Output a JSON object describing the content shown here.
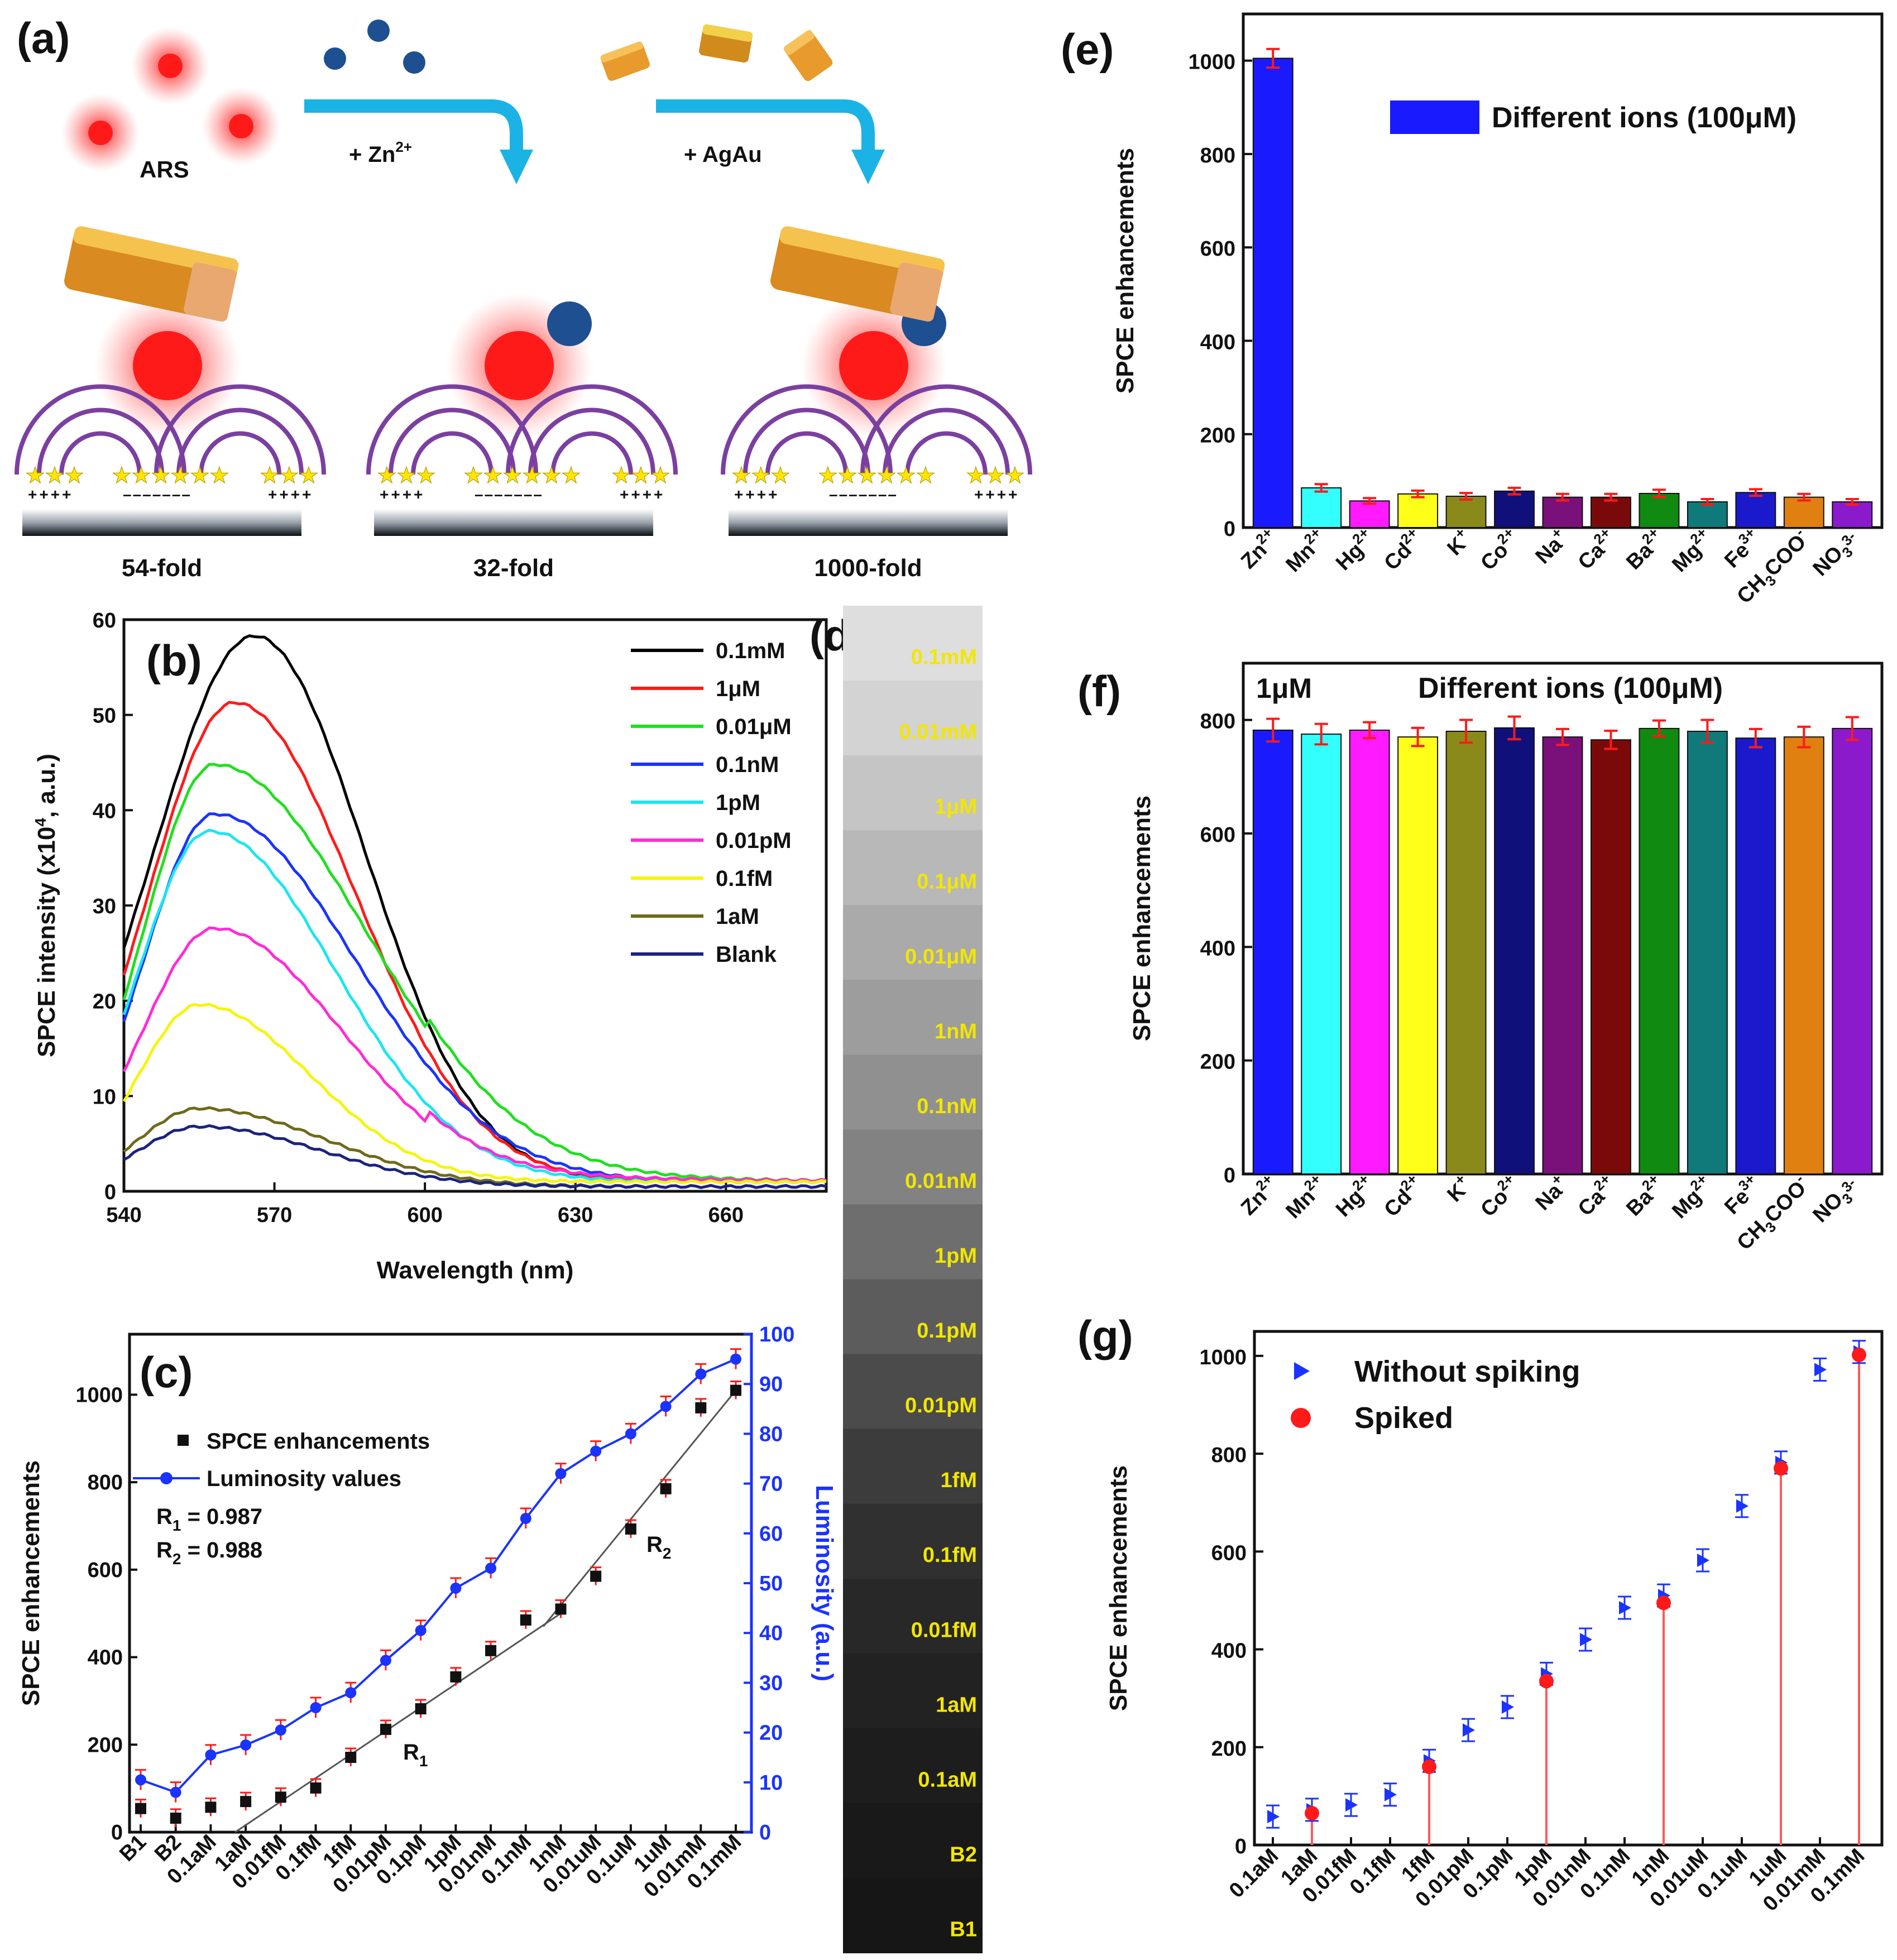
{
  "panels": {
    "a": "(a)",
    "b": "(b)",
    "c": "(c)",
    "d": "(d)",
    "e": "(e)",
    "f": "(f)",
    "g": "(g)"
  },
  "colors": {
    "ars_red": "#ff1a1a",
    "zn_blue": "#1d4f91",
    "arrow": "#1bb3e6",
    "agau": "#e89a2c",
    "arc": "#7b3fa0",
    "star": "#ffe600",
    "err": "#ff1a1a",
    "lum_blue": "#1a33ff"
  },
  "schematic": {
    "ars_label": "ARS",
    "zn_step": "+ Zn",
    "zn_sup": "2+",
    "agau_step": "+ AgAu",
    "stage_labels": [
      "54-fold",
      "32-fold",
      "1000-fold"
    ],
    "plus_signs": "++++",
    "minus_signs": "–––––––"
  },
  "chart_data": [
    {
      "id": "b",
      "type": "line",
      "xlabel": "Wavelength (nm)",
      "ylabel": "SPCE intensity (x10",
      "ylabel_sup": "4",
      "ylabel_end": ", a.u.)",
      "xlim": [
        540,
        680
      ],
      "ylim": [
        0,
        60
      ],
      "xticks": [
        540,
        570,
        600,
        630,
        660
      ],
      "yticks": [
        0,
        10,
        20,
        30,
        40,
        50,
        60
      ],
      "series": [
        {
          "name": "0.1mM",
          "color": "#000000",
          "peak": 58.3,
          "lambda": 566,
          "sl": 20,
          "sr": 22,
          "base": 1,
          "start": 5
        },
        {
          "name": "1μM",
          "color": "#ff1a1a",
          "peak": 51.3,
          "lambda": 562,
          "sl": 17,
          "sr": 24,
          "base": 1,
          "start": 5
        },
        {
          "name": "0.01μM",
          "color": "#1fe01f",
          "peak": 44.8,
          "lambda": 558,
          "sl": 14,
          "sr": 30,
          "base": 1,
          "start": 8
        },
        {
          "name": "0.1nM",
          "color": "#1a33ff",
          "peak": 39.6,
          "lambda": 558,
          "sl": 14,
          "sr": 28,
          "base": 1,
          "start": 8
        },
        {
          "name": "1pM",
          "color": "#1ae6f2",
          "peak": 37.8,
          "lambda": 557,
          "sl": 14,
          "sr": 25,
          "base": 1,
          "start": 9
        },
        {
          "name": "0.01pM",
          "color": "#ff2bd6",
          "peak": 27.6,
          "lambda": 558,
          "sl": 14,
          "sr": 25,
          "base": 1,
          "start": 6
        },
        {
          "name": "0.1fM",
          "color": "#f5f50a",
          "peak": 19.6,
          "lambda": 555,
          "sl": 12,
          "sr": 22,
          "base": 1,
          "start": 6
        },
        {
          "name": "1aM",
          "color": "#6f6a1a",
          "peak": 8.7,
          "lambda": 555,
          "sl": 12,
          "sr": 25,
          "base": 0.5,
          "start": 4
        },
        {
          "name": "Blank",
          "color": "#1a237e",
          "peak": 6.8,
          "lambda": 555,
          "sl": 12,
          "sr": 24,
          "base": 0.5,
          "start": 2
        }
      ]
    },
    {
      "id": "c",
      "type": "scatter+line",
      "ylabel": "SPCE enhancements",
      "ylabel_right": "Luminosity (a.u.)",
      "categories": [
        "B1",
        "B2",
        "0.1aM",
        "1aM",
        "0.01fM",
        "0.1fM",
        "1fM",
        "0.01pM",
        "0.1pM",
        "1pM",
        "0.01nM",
        "0.1nM",
        "1nM",
        "0.01uM",
        "0.1uM",
        "1uM",
        "0.01mM",
        "0.1mM"
      ],
      "ylim": [
        0,
        1100
      ],
      "ylim_right": [
        0,
        100
      ],
      "yticks": [
        0,
        200,
        400,
        600,
        800,
        1000
      ],
      "yticks_right": [
        0,
        10,
        20,
        30,
        40,
        50,
        60,
        70,
        80,
        90,
        100
      ],
      "series": [
        {
          "name": "SPCE enhancements",
          "color": "#111111",
          "values": [
            54,
            32,
            57,
            70,
            80,
            101,
            171,
            235,
            282,
            355,
            415,
            485,
            510,
            585,
            693,
            785,
            970,
            1010
          ]
        },
        {
          "name": "Luminosity values",
          "color": "#1a33ff",
          "values": [
            10.5,
            8,
            15.5,
            17.5,
            20.5,
            25,
            28,
            34.5,
            40.5,
            49,
            53,
            63,
            72,
            76.5,
            80,
            85.5,
            92,
            95
          ]
        }
      ],
      "annotations": [
        "R",
        "1",
        " = 0.987",
        "R",
        "2",
        " = 0.988"
      ],
      "fit_labels": {
        "r1": "R",
        "r1_sub": "1",
        "r2": "R",
        "r2_sub": "2"
      }
    },
    {
      "id": "e",
      "type": "bar",
      "ylabel": "SPCE enhancements",
      "legend": "Different ions (100",
      "legend_mu": "μM)",
      "ylim": [
        0,
        1100
      ],
      "yticks": [
        0,
        200,
        400,
        600,
        800,
        1000
      ],
      "categories": [
        "Zn",
        "Mn",
        "Hg",
        "Cd",
        "K",
        "Co",
        "Na",
        "Ca",
        "Ba",
        "Mg",
        "Fe",
        "CH",
        "NO"
      ],
      "category_sups": [
        "2+",
        "2+",
        "2+",
        "2+",
        "+",
        "2+",
        "+",
        "2+",
        "2+",
        "2+",
        "3+",
        "-",
        "3-"
      ],
      "category_subs": [
        "",
        "",
        "",
        "",
        "",
        "",
        "",
        "",
        "",
        "",
        "",
        "3",
        "3"
      ],
      "category_tail": [
        "",
        "",
        "",
        "",
        "",
        "",
        "",
        "",
        "",
        "",
        "",
        "COO",
        ""
      ],
      "values": [
        1005,
        85,
        57,
        72,
        67,
        78,
        65,
        65,
        73,
        55,
        75,
        65,
        55
      ],
      "errors": [
        20,
        8,
        6,
        7,
        7,
        7,
        7,
        7,
        8,
        6,
        7,
        7,
        6
      ],
      "bar_colors": [
        "#1a1aff",
        "#33ffff",
        "#ff1aff",
        "#ffff1a",
        "#8a8a1a",
        "#10107a",
        "#7a107a",
        "#7a0a0a",
        "#108a10",
        "#107a7a",
        "#1a1acc",
        "#e08010",
        "#8a1acc"
      ]
    },
    {
      "id": "f",
      "type": "bar",
      "ylabel": "SPCE enhancements",
      "corner": "1μM",
      "legend": "Different ions (100",
      "legend_mu": "μM)",
      "ylim": [
        0,
        900
      ],
      "yticks": [
        0,
        200,
        400,
        600,
        800
      ],
      "values": [
        782,
        775,
        782,
        770,
        780,
        786,
        770,
        765,
        785,
        780,
        768,
        770,
        785
      ],
      "errors": [
        20,
        18,
        14,
        16,
        20,
        20,
        14,
        16,
        14,
        20,
        16,
        18,
        20
      ]
    },
    {
      "id": "g",
      "type": "scatter",
      "ylabel": "SPCE enhancements",
      "categories": [
        "0.1aM",
        "1aM",
        "0.01fM",
        "0.1fM",
        "1fM",
        "0.01pM",
        "0.1pM",
        "1pM",
        "0.01nM",
        "0.1nM",
        "1nM",
        "0.01uM",
        "0.1uM",
        "1uM",
        "0.01mM",
        "0.1mM"
      ],
      "ylim": [
        0,
        1050
      ],
      "yticks": [
        0,
        200,
        400,
        600,
        800,
        1000
      ],
      "series": [
        {
          "name": "Without spiking",
          "color": "#1a33ff",
          "values": [
            58,
            72,
            82,
            103,
            172,
            235,
            282,
            350,
            420,
            485,
            510,
            582,
            693,
            782,
            972,
            1008
          ]
        },
        {
          "name": "Spiked",
          "color": "#ff1a1a",
          "values": [
            null,
            65,
            null,
            null,
            160,
            null,
            null,
            335,
            null,
            null,
            495,
            null,
            null,
            770,
            null,
            1002
          ]
        }
      ]
    },
    {
      "id": "d",
      "type": "table",
      "labels": [
        "0.1mM",
        "0.01mM",
        "1μM",
        "0.1μM",
        "0.01μM",
        "1nM",
        "0.1nM",
        "0.01nM",
        "1pM",
        "0.1pM",
        "0.01pM",
        "1fM",
        "0.1fM",
        "0.01fM",
        "1aM",
        "0.1aM",
        "B2",
        "B1"
      ],
      "gray_levels": [
        222,
        211,
        197,
        184,
        170,
        157,
        144,
        130,
        110,
        92,
        75,
        60,
        48,
        40,
        34,
        29,
        25,
        22
      ]
    }
  ]
}
